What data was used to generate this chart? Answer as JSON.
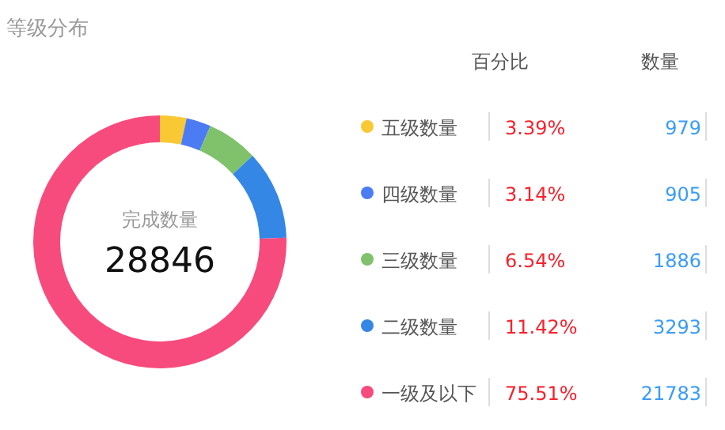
{
  "chart_data": {
    "type": "donut",
    "title": "等级分布",
    "categories": [
      "五级数量",
      "四级数量",
      "三级数量",
      "二级数量",
      "一级及以下"
    ],
    "values": [
      3.39,
      3.14,
      6.54,
      11.42,
      75.51
    ],
    "colors": [
      "#f9c835",
      "#4c7cf3",
      "#7fc26b",
      "#3587e6",
      "#f74b7d"
    ],
    "value_labels": [
      "3.39%",
      "3.14%",
      "6.54%",
      "11.42%",
      "75.51%"
    ],
    "legend": "right",
    "annotations": [
      "完成数量",
      "28846",
      "百分比",
      "数量",
      "979",
      "905",
      "1886",
      "3293",
      "21783"
    ]
  }
}
